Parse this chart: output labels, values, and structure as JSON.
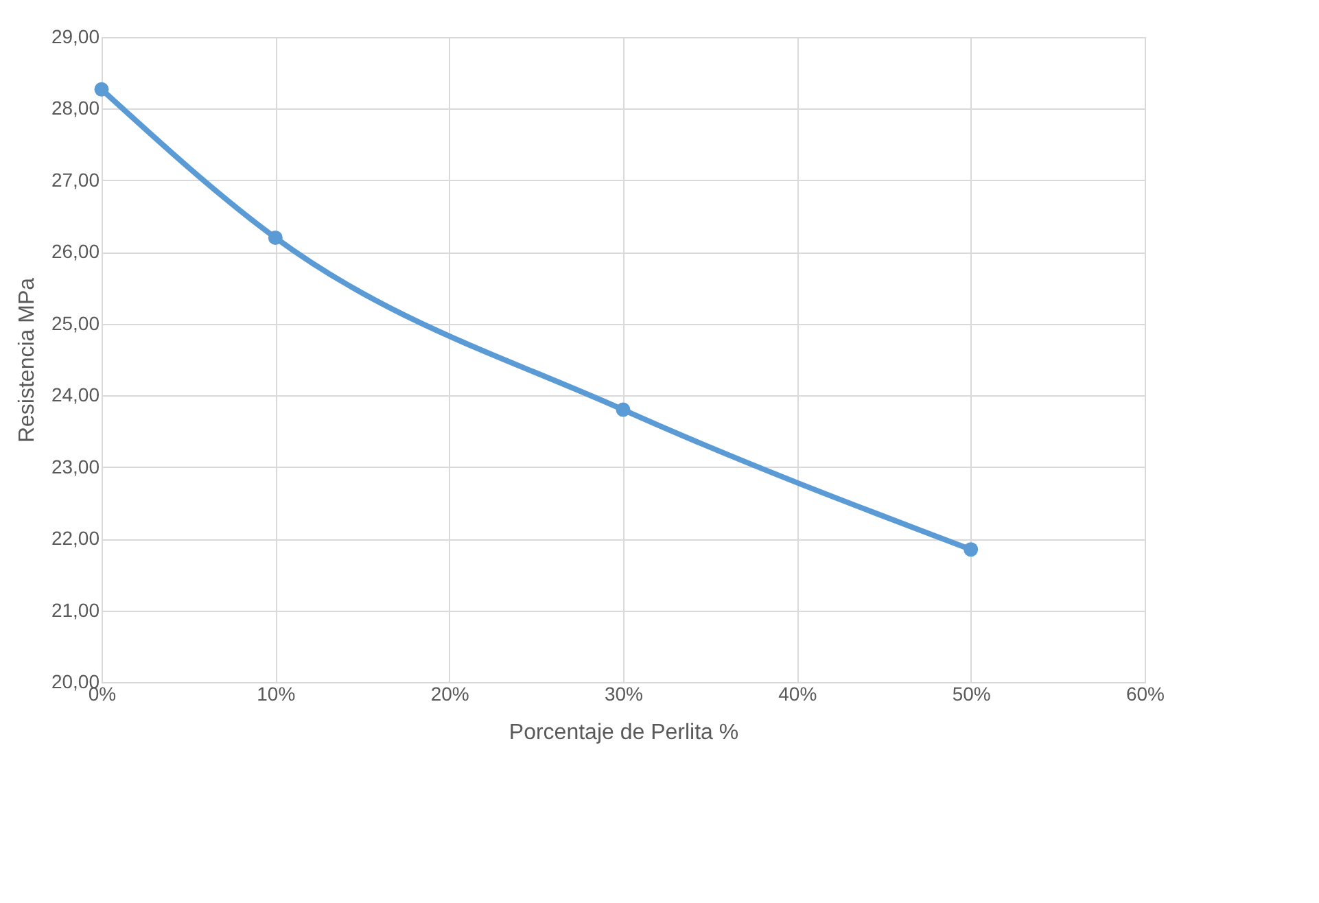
{
  "chart_data": {
    "type": "line",
    "x": [
      0,
      10,
      30,
      50
    ],
    "series": [
      {
        "color": "#5b9bd5",
        "values": [
          28.27,
          26.2,
          23.8,
          21.85
        ]
      }
    ],
    "xlabel": "Porcentaje de Perlita %",
    "ylabel": "Resistencia MPa",
    "xlim": [
      0,
      60
    ],
    "xticks": [
      {
        "value": 0,
        "label": "0%"
      },
      {
        "value": 10,
        "label": "10%"
      },
      {
        "value": 20,
        "label": "20%"
      },
      {
        "value": 30,
        "label": "30%"
      },
      {
        "value": 40,
        "label": "40%"
      },
      {
        "value": 50,
        "label": "50%"
      },
      {
        "value": 60,
        "label": "60%"
      }
    ],
    "ylim": [
      20,
      29
    ],
    "yticks": [
      {
        "value": 20,
        "label": "20,00"
      },
      {
        "value": 21,
        "label": "21,00"
      },
      {
        "value": 22,
        "label": "22,00"
      },
      {
        "value": 23,
        "label": "23,00"
      },
      {
        "value": 24,
        "label": "24,00"
      },
      {
        "value": 25,
        "label": "25,00"
      },
      {
        "value": 26,
        "label": "26,00"
      },
      {
        "value": 27,
        "label": "27,00"
      },
      {
        "value": 28,
        "label": "28,00"
      },
      {
        "value": 29,
        "label": "29,00"
      }
    ],
    "grid": true,
    "marker": "circle",
    "line_style": "solid"
  }
}
